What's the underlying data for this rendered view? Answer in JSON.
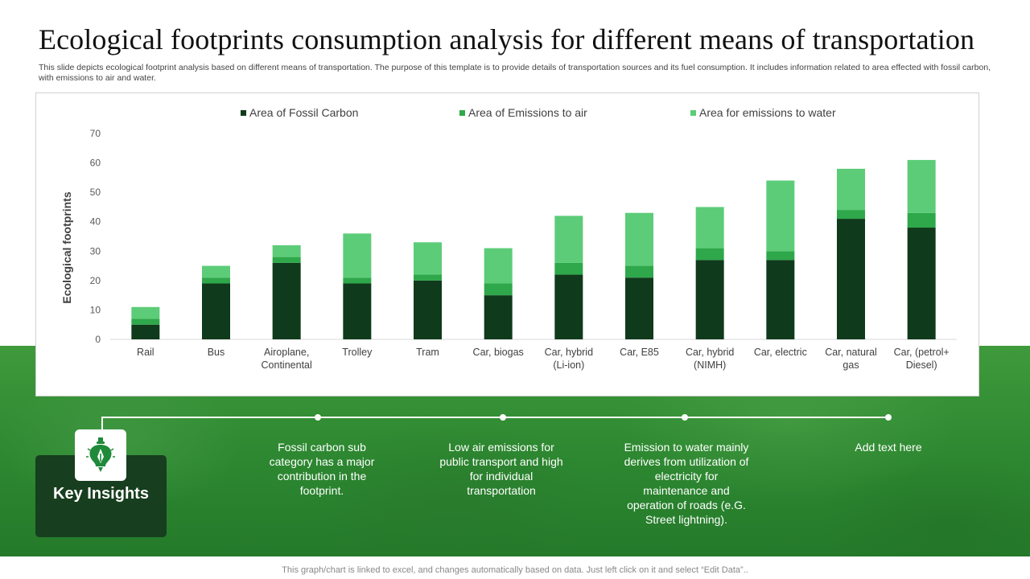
{
  "slide": {
    "title": "Ecological footprints consumption analysis for different means of transportation",
    "subtitle": "This slide depicts ecological footprint analysis based on different means of transportation. The purpose of this template is to provide details of transportation sources and its fuel consumption.  It includes information related to area effected with fossil carbon, with emissions to air and water.",
    "footer": "This graph/chart is linked to excel, and changes automatically based on data. Just left click on it and select “Edit Data”.."
  },
  "insights": {
    "label": "Key Insights",
    "icon": "lightbulb-pen-icon",
    "items": [
      "Fossil carbon sub category has a major contribution in the footprint.",
      "Low air emissions for public transport and high for individual transportation",
      "Emission to water mainly derives from utilization of electricity for maintenance and operation of roads (e.G. Street lightning).",
      "Add text here"
    ]
  },
  "colors": {
    "fossil": "#0f3a1c",
    "air": "#2ea84a",
    "water": "#5ccc78"
  },
  "chart_data": {
    "type": "bar",
    "stacked": true,
    "title": "",
    "xlabel": "",
    "ylabel": "Ecological footprints",
    "ylim": [
      0,
      70
    ],
    "yticks": [
      0,
      10,
      20,
      30,
      40,
      50,
      60,
      70
    ],
    "grid": false,
    "legend_position": "top",
    "categories": [
      [
        "Rail"
      ],
      [
        "Bus"
      ],
      [
        "Airoplane,",
        "Continental"
      ],
      [
        "Trolley"
      ],
      [
        "Tram"
      ],
      [
        "Car, biogas"
      ],
      [
        "Car, hybrid",
        "(Li-ion)"
      ],
      [
        "Car, E85"
      ],
      [
        "Car, hybrid",
        "(NIMH)"
      ],
      [
        "Car, electric"
      ],
      [
        "Car, natural",
        "gas"
      ],
      [
        "Car, (petrol+",
        "Diesel)"
      ]
    ],
    "series": [
      {
        "name": "Area of Fossil Carbon",
        "values": [
          5,
          19,
          26,
          19,
          20,
          15,
          22,
          21,
          27,
          27,
          41,
          38
        ]
      },
      {
        "name": "Area of Emissions to air",
        "values": [
          2,
          2,
          2,
          2,
          2,
          4,
          4,
          4,
          4,
          3,
          3,
          5
        ]
      },
      {
        "name": "Area for emissions to water",
        "values": [
          4,
          4,
          4,
          15,
          11,
          12,
          16,
          18,
          14,
          24,
          14,
          18
        ]
      }
    ]
  }
}
